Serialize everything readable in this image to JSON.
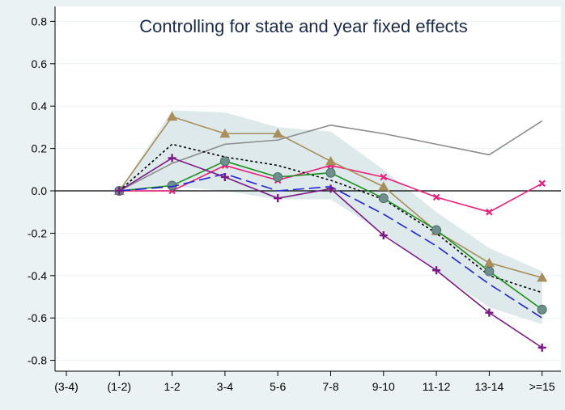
{
  "chart_data": {
    "type": "line",
    "title": "Controlling for state and year fixed effects",
    "categories": [
      "(3-4)",
      "(1-2)",
      "1-2",
      "3-4",
      "5-6",
      "7-8",
      "9-10",
      "11-12",
      "13-14",
      ">=15"
    ],
    "yticks": [
      "0.8",
      "0.6",
      "0.4",
      "0.2",
      "0.0",
      "-0.2",
      "-0.4",
      "-0.6",
      "-0.8"
    ],
    "ylim": [
      -0.83,
      0.83
    ],
    "grid": true,
    "band": {
      "color": "#dde9ea",
      "x": [
        1,
        2,
        3,
        4,
        5,
        6,
        7,
        8,
        9
      ],
      "upper": [
        0.0,
        0.38,
        0.37,
        0.3,
        0.28,
        0.1,
        -0.1,
        -0.27,
        -0.38
      ],
      "lower": [
        0.0,
        0.02,
        0.0,
        -0.04,
        -0.04,
        -0.2,
        -0.38,
        -0.55,
        -0.63
      ]
    },
    "series": [
      {
        "color": "#8c8c8c",
        "style": "solid",
        "marker": "none",
        "x": [
          1,
          2,
          3,
          4,
          5,
          6,
          7,
          8,
          9
        ],
        "values": [
          0.0,
          0.13,
          0.22,
          0.24,
          0.31,
          0.27,
          0.22,
          0.17,
          0.33
        ]
      },
      {
        "color": "#ee1f7a",
        "style": "solid",
        "marker": "x",
        "x": [
          1,
          2,
          3,
          4,
          5,
          6,
          7,
          8,
          9
        ],
        "values": [
          0.0,
          0.0,
          0.12,
          0.05,
          0.12,
          0.065,
          -0.03,
          -0.1,
          0.035
        ]
      },
      {
        "color": "#a88e5a",
        "style": "solid",
        "marker": "triangle",
        "x": [
          1,
          2,
          3,
          4,
          5,
          6,
          7,
          8,
          9
        ],
        "values": [
          0.0,
          0.35,
          0.27,
          0.27,
          0.14,
          0.02,
          -0.19,
          -0.34,
          -0.41
        ]
      },
      {
        "color": "#000000",
        "style": "dotted",
        "marker": "none",
        "x": [
          1,
          2,
          3,
          4,
          5,
          6,
          7,
          8,
          9
        ],
        "values": [
          0.0,
          0.22,
          0.16,
          0.12,
          0.05,
          -0.04,
          -0.2,
          -0.4,
          -0.48
        ]
      },
      {
        "color": "#1f8f1f",
        "style": "solid",
        "marker": "circle",
        "x": [
          1,
          2,
          3,
          4,
          5,
          6,
          7,
          8,
          9
        ],
        "values": [
          0.0,
          0.025,
          0.14,
          0.065,
          0.085,
          -0.035,
          -0.185,
          -0.38,
          -0.56
        ]
      },
      {
        "color": "#2323d6",
        "style": "dashed",
        "marker": "none",
        "x": [
          1,
          2,
          3,
          4,
          5,
          6,
          7,
          8,
          9
        ],
        "values": [
          0.0,
          0.02,
          0.08,
          0.0,
          0.02,
          -0.11,
          -0.26,
          -0.44,
          -0.6
        ]
      },
      {
        "color": "#7b1a86",
        "style": "solid",
        "marker": "plus",
        "x": [
          1,
          2,
          3,
          4,
          5,
          6,
          7,
          8,
          9
        ],
        "values": [
          0.0,
          0.155,
          0.065,
          -0.035,
          0.01,
          -0.21,
          -0.375,
          -0.575,
          -0.74
        ]
      }
    ]
  }
}
